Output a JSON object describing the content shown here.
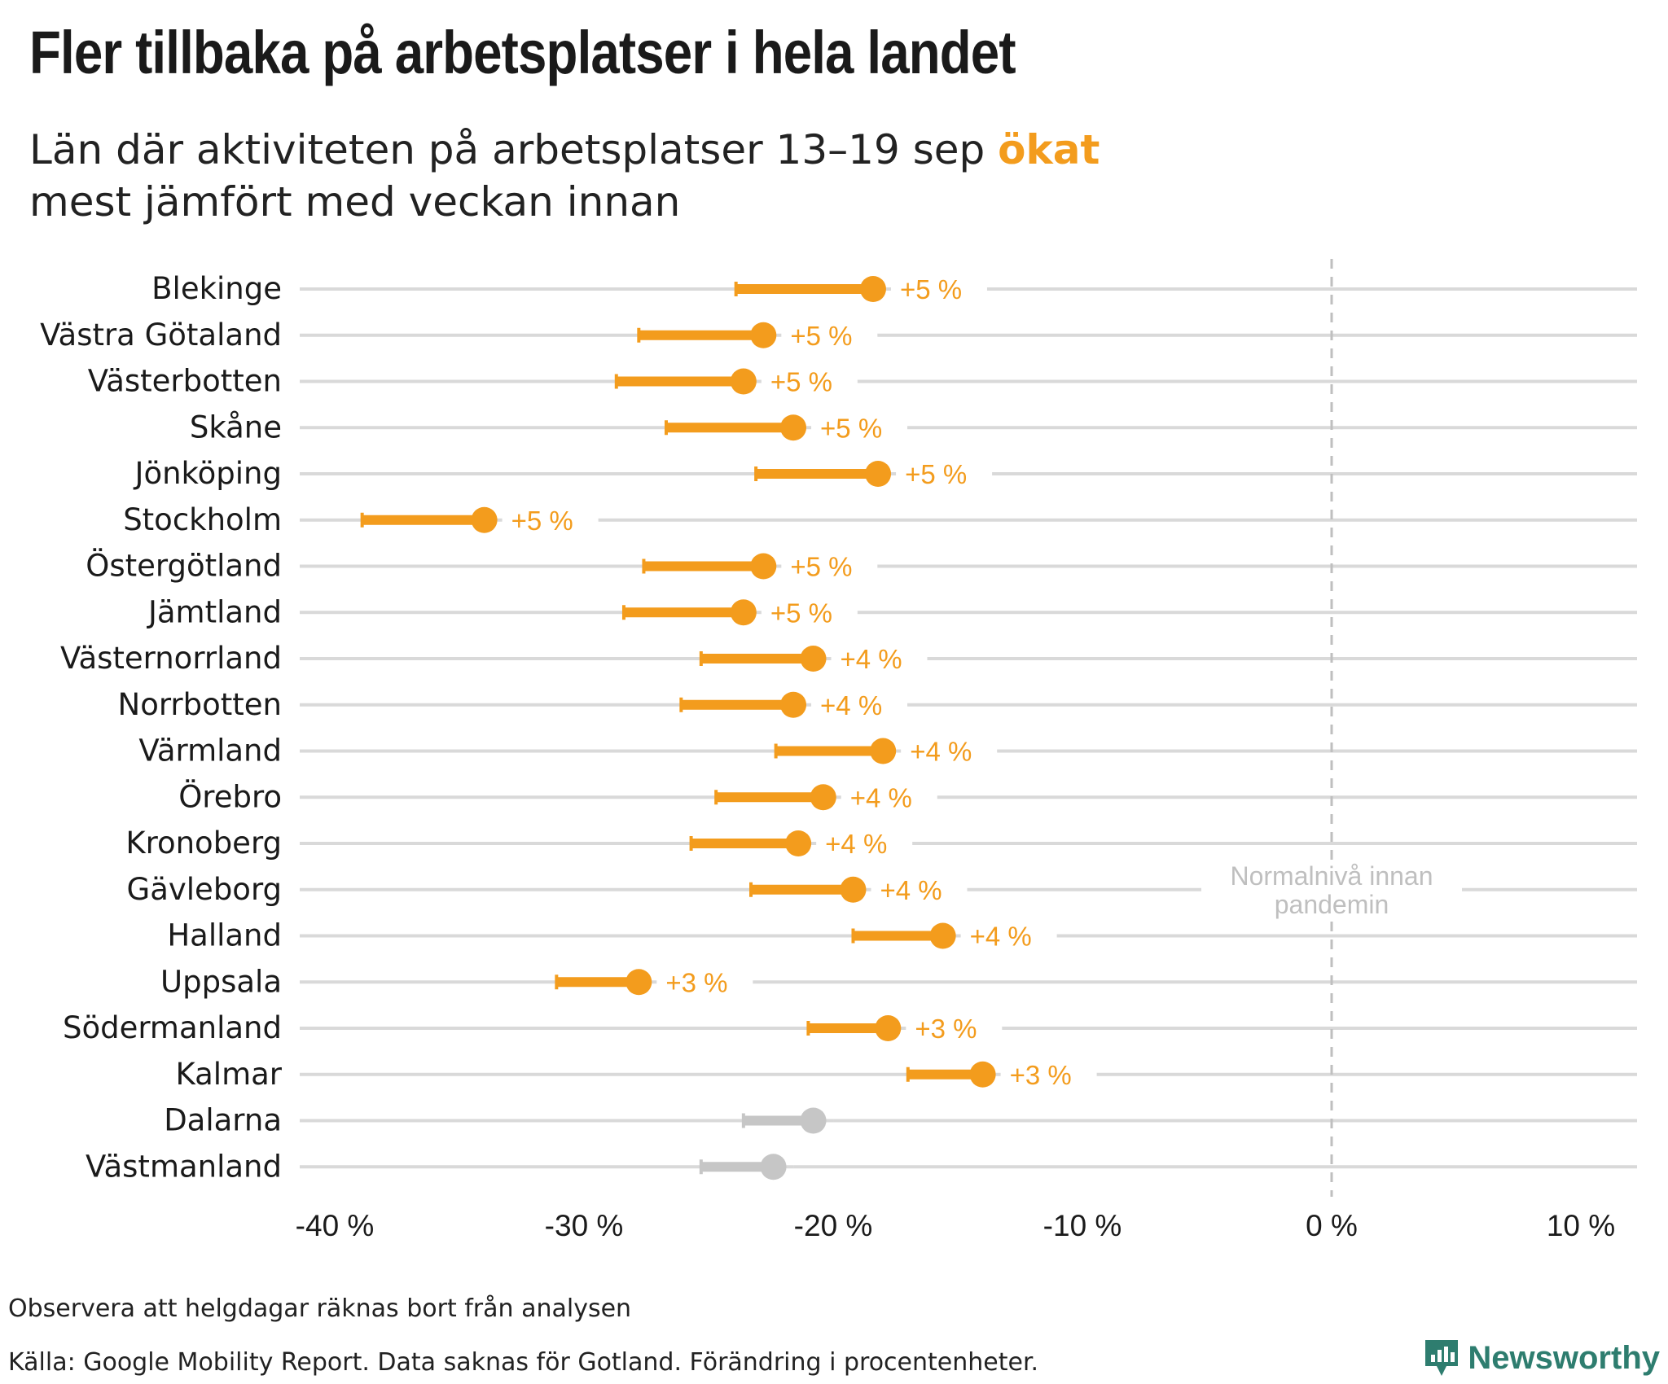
{
  "title": "Fler tillbaka på arbetsplatser i hela landet",
  "subtitle": {
    "line1_before": "Län där aktiviteten på arbetsplatser 13–19 sep ",
    "line1_highlight": "ökat",
    "line2": "mest jämfört med veckan innan"
  },
  "notes": {
    "holidays": "Observera att helgdagar räknas bort från analysen",
    "source": "Källa: Google Mobility Report. Data saknas för Gotland. Förändring i procentenheter."
  },
  "brand": {
    "name": "Newsworthy",
    "icon": "newsworthy-logo-icon",
    "color": "#2e7d6f"
  },
  "colors": {
    "increase": "#f39c1d",
    "neutral": "#c6c6c6",
    "grid": "#d9d9d9",
    "reference": "#bfbfbf"
  },
  "chart_data": {
    "type": "dumbbell",
    "xlim": [
      -40,
      10
    ],
    "xticks": [
      -40,
      -30,
      -20,
      -10,
      0,
      10
    ],
    "xtick_labels": [
      "-40 %",
      "-30 %",
      "-20 %",
      "-10 %",
      "0 %",
      "10 %"
    ],
    "reference_line": {
      "x": 0,
      "label_line1": "Normalnivå innan",
      "label_line2": "pandemin"
    },
    "rows": [
      {
        "name": "Blekinge",
        "prev": -23.9,
        "current": -18.4,
        "change_label": "+5 %",
        "highlight": true
      },
      {
        "name": "Västra Götaland",
        "prev": -27.8,
        "current": -22.8,
        "change_label": "+5 %",
        "highlight": true
      },
      {
        "name": "Västerbotten",
        "prev": -28.7,
        "current": -23.6,
        "change_label": "+5 %",
        "highlight": true
      },
      {
        "name": "Skåne",
        "prev": -26.7,
        "current": -21.6,
        "change_label": "+5 %",
        "highlight": true
      },
      {
        "name": "Jönköping",
        "prev": -23.1,
        "current": -18.2,
        "change_label": "+5 %",
        "highlight": true
      },
      {
        "name": "Stockholm",
        "prev": -38.9,
        "current": -34.0,
        "change_label": "+5 %",
        "highlight": true
      },
      {
        "name": "Östergötland",
        "prev": -27.6,
        "current": -22.8,
        "change_label": "+5 %",
        "highlight": true
      },
      {
        "name": "Jämtland",
        "prev": -28.4,
        "current": -23.6,
        "change_label": "+5 %",
        "highlight": true
      },
      {
        "name": "Västernorrland",
        "prev": -25.3,
        "current": -20.8,
        "change_label": "+4 %",
        "highlight": true
      },
      {
        "name": "Norrbotten",
        "prev": -26.1,
        "current": -21.6,
        "change_label": "+4 %",
        "highlight": true
      },
      {
        "name": "Värmland",
        "prev": -22.3,
        "current": -18.0,
        "change_label": "+4 %",
        "highlight": true
      },
      {
        "name": "Örebro",
        "prev": -24.7,
        "current": -20.4,
        "change_label": "+4 %",
        "highlight": true
      },
      {
        "name": "Kronoberg",
        "prev": -25.7,
        "current": -21.4,
        "change_label": "+4 %",
        "highlight": true
      },
      {
        "name": "Gävleborg",
        "prev": -23.3,
        "current": -19.2,
        "change_label": "+4 %",
        "highlight": true
      },
      {
        "name": "Halland",
        "prev": -19.2,
        "current": -15.6,
        "change_label": "+4 %",
        "highlight": true
      },
      {
        "name": "Uppsala",
        "prev": -31.1,
        "current": -27.8,
        "change_label": "+3 %",
        "highlight": true
      },
      {
        "name": "Södermanland",
        "prev": -21.0,
        "current": -17.8,
        "change_label": "+3 %",
        "highlight": true
      },
      {
        "name": "Kalmar",
        "prev": -17.0,
        "current": -14.0,
        "change_label": "+3 %",
        "highlight": true
      },
      {
        "name": "Dalarna",
        "prev": -23.6,
        "current": -20.8,
        "change_label": "",
        "highlight": false
      },
      {
        "name": "Västmanland",
        "prev": -25.3,
        "current": -22.4,
        "change_label": "",
        "highlight": false
      }
    ]
  }
}
